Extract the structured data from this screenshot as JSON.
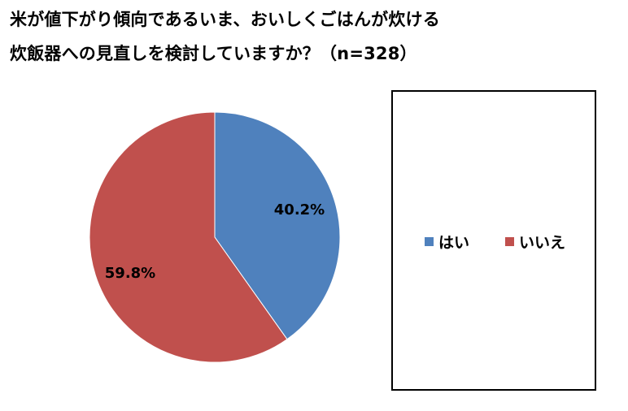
{
  "chart_data": {
    "type": "pie",
    "title": "米が値下がり傾向であるいま、おいしくごはんが炊ける",
    "subtitle": "炊飯器への見直しを検討していますか？（n=328）",
    "categories": [
      "はい",
      "いいえ"
    ],
    "values": [
      40.2,
      59.8
    ],
    "labels": [
      "40.2%",
      "59.8%"
    ],
    "colors": [
      "#4f81bd",
      "#c0504d"
    ],
    "legend": "right, boxed"
  }
}
